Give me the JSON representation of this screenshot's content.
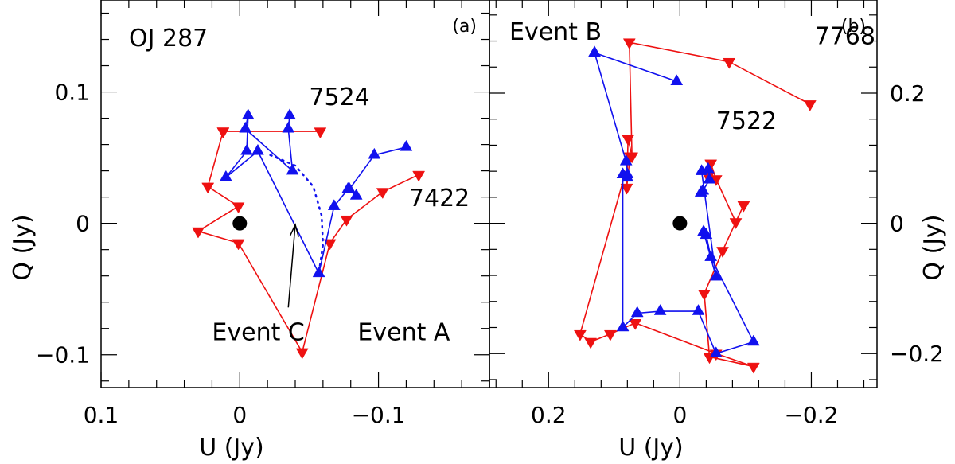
{
  "colors": {
    "red": "#ee1111",
    "blue": "#1111ee",
    "axis": "#000000"
  },
  "chart_data": [
    {
      "id": "a",
      "type": "scatter",
      "panel_label": "(a)",
      "title": "OJ 287",
      "xlabel": "U (Jy)",
      "ylabel": "Q (Jy)",
      "xlim": [
        0.1,
        -0.18
      ],
      "ylim": [
        -0.125,
        0.17
      ],
      "x_ticks": [
        0.1,
        0,
        -0.1
      ],
      "x_tick_labels": [
        "0.1",
        "0",
        "−0.1"
      ],
      "y_ticks": [
        -0.1,
        0,
        0.1
      ],
      "y_tick_labels": [
        "−0.1",
        "0",
        "0.1"
      ],
      "y_tick_side": "left",
      "origin_marker": [
        0,
        0
      ],
      "series": [
        {
          "name": "red",
          "color": "red",
          "marker": "triangle-down",
          "points": [
            [
              0.012,
              0.07
            ],
            [
              -0.058,
              0.07
            ],
            [
              0.012,
              0.07
            ],
            [
              0.023,
              0.028
            ],
            [
              0.001,
              0.013
            ],
            [
              0.03,
              -0.006
            ],
            [
              0.001,
              -0.015
            ],
            [
              -0.045,
              -0.098
            ],
            [
              -0.065,
              -0.015
            ],
            [
              -0.077,
              0.003
            ],
            [
              -0.103,
              0.024
            ],
            [
              -0.129,
              0.037
            ]
          ]
        },
        {
          "name": "blue",
          "color": "blue",
          "marker": "triangle-up",
          "points": [
            [
              -0.036,
              0.082
            ],
            [
              -0.035,
              0.072
            ],
            [
              -0.038,
              0.04
            ],
            [
              -0.004,
              0.072
            ],
            [
              -0.006,
              0.082
            ],
            [
              -0.005,
              0.055
            ],
            [
              0.01,
              0.035
            ],
            [
              -0.013,
              0.055
            ],
            [
              -0.057,
              -0.038
            ],
            [
              -0.068,
              0.013
            ],
            [
              -0.078,
              0.026
            ],
            [
              -0.084,
              0.021
            ],
            [
              -0.079,
              0.026
            ],
            [
              -0.097,
              0.052
            ],
            [
              -0.12,
              0.058
            ]
          ]
        }
      ],
      "dotted_curve": {
        "color": "blue",
        "points": [
          [
            -0.022,
            0.052
          ],
          [
            -0.04,
            0.044
          ],
          [
            -0.053,
            0.028
          ],
          [
            -0.059,
            0.006
          ],
          [
            -0.06,
            -0.016
          ],
          [
            -0.057,
            -0.038
          ]
        ]
      },
      "arrow": {
        "from": [
          -0.035,
          -0.064
        ],
        "to": [
          -0.04,
          -0.001
        ]
      },
      "annotations": [
        {
          "text": "7524",
          "at": [
            -0.05,
            0.09
          ]
        },
        {
          "text": "7422",
          "at": [
            -0.122,
            0.013
          ]
        },
        {
          "text": "Event C",
          "at": [
            0.02,
            -0.089
          ]
        },
        {
          "text": "Event A",
          "at": [
            -0.085,
            -0.089
          ]
        }
      ]
    },
    {
      "id": "b",
      "type": "scatter",
      "panel_label": "(b)",
      "title": "Event B",
      "xlabel": "U (Jy)",
      "ylabel": "Q (Jy)",
      "xlim": [
        0.29,
        -0.3
      ],
      "ylim": [
        -0.2523,
        0.343
      ],
      "x_ticks": [
        0.2,
        0,
        -0.2
      ],
      "x_tick_labels": [
        "0.2",
        "0",
        "−0.2"
      ],
      "y_ticks": [
        -0.2,
        0,
        0.2
      ],
      "y_tick_labels": [
        "−0.2",
        "0",
        "0.2"
      ],
      "y_tick_side": "right",
      "origin_marker": [
        0,
        0
      ],
      "series": [
        {
          "name": "red",
          "color": "red",
          "marker": "triangle-down",
          "points": [
            [
              -0.198,
              0.183
            ],
            [
              -0.075,
              0.248
            ],
            [
              0.077,
              0.278
            ],
            [
              0.073,
              0.103
            ],
            [
              0.079,
              0.13
            ],
            [
              0.081,
              0.055
            ],
            [
              0.076,
              0.103
            ],
            [
              0.152,
              -0.17
            ],
            [
              0.136,
              -0.182
            ],
            [
              0.106,
              -0.17
            ],
            [
              0.068,
              -0.153
            ],
            [
              -0.055,
              -0.2
            ],
            [
              -0.112,
              -0.22
            ],
            [
              -0.045,
              -0.205
            ],
            [
              -0.037,
              -0.108
            ],
            [
              -0.065,
              -0.042
            ],
            [
              -0.097,
              0.028
            ],
            [
              -0.085,
              0.002
            ],
            [
              -0.055,
              0.068
            ],
            [
              -0.047,
              0.092
            ],
            [
              -0.043,
              0.072
            ]
          ]
        },
        {
          "name": "blue",
          "color": "blue",
          "marker": "triangle-up",
          "points": [
            [
              0.005,
              0.218
            ],
            [
              0.13,
              0.262
            ],
            [
              0.082,
              0.095
            ],
            [
              0.08,
              0.075
            ],
            [
              0.08,
              0.07
            ],
            [
              0.087,
              0.075
            ],
            [
              0.087,
              -0.16
            ],
            [
              0.065,
              -0.138
            ],
            [
              0.03,
              -0.135
            ],
            [
              -0.028,
              -0.135
            ],
            [
              -0.055,
              -0.2
            ],
            [
              -0.112,
              -0.182
            ],
            [
              -0.047,
              -0.052
            ],
            [
              -0.04,
              -0.018
            ],
            [
              -0.036,
              -0.013
            ],
            [
              -0.055,
              -0.082
            ],
            [
              -0.033,
              0.08
            ],
            [
              -0.043,
              0.083
            ],
            [
              -0.045,
              0.067
            ],
            [
              -0.035,
              0.05
            ],
            [
              -0.032,
              0.047
            ]
          ]
        }
      ],
      "annotations": [
        {
          "text": "7768",
          "at": [
            -0.205,
            0.275
          ]
        },
        {
          "text": "7522",
          "at": [
            -0.055,
            0.145
          ]
        }
      ]
    }
  ]
}
